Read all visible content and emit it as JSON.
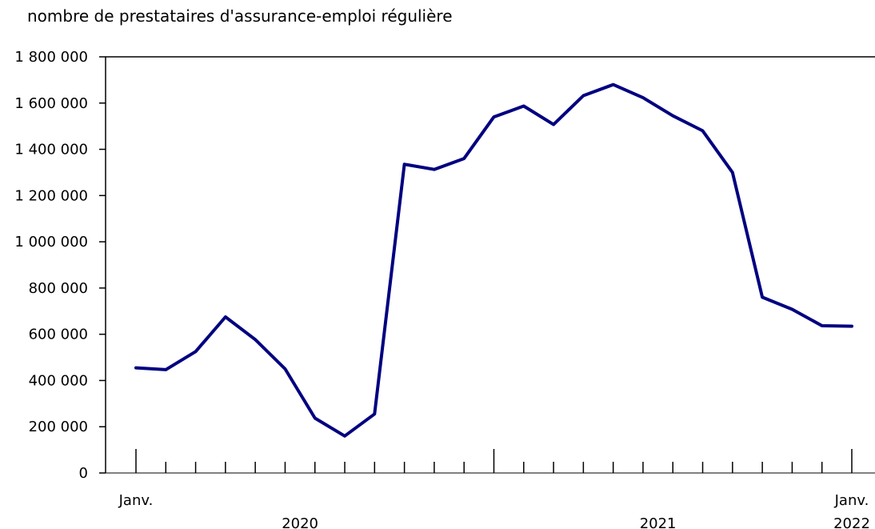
{
  "chart_data": {
    "type": "line",
    "title": "",
    "ylabel": "nombre de prestataires d'assurance-emploi régulière",
    "xlabel": "",
    "ylim": [
      0,
      1800000
    ],
    "y_ticks": [
      "0",
      "200 000",
      "400 000",
      "600 000",
      "800 000",
      "1 000 000",
      "1 200 000",
      "1 400 000",
      "1 600 000",
      "1 800 000"
    ],
    "x_tick_labels": [
      {
        "month_index": 0,
        "label": "Janv."
      },
      {
        "month_index": 24,
        "label": "Janv."
      }
    ],
    "x_group_labels": [
      {
        "label": "2020",
        "center_month": 5.5
      },
      {
        "label": "2021",
        "center_month": 17.5
      },
      {
        "label": "2022",
        "center_month": 24
      }
    ],
    "series": [
      {
        "color": "#000080",
        "x": [
          "2020-01",
          "2020-02",
          "2020-03",
          "2020-04",
          "2020-05",
          "2020-06",
          "2020-07",
          "2020-08",
          "2020-09",
          "2020-10",
          "2020-11",
          "2020-12",
          "2021-01",
          "2021-02",
          "2021-03",
          "2021-04",
          "2021-05",
          "2021-06",
          "2021-07",
          "2021-08",
          "2021-09",
          "2021-10",
          "2021-11",
          "2021-12",
          "2022-01"
        ],
        "values": [
          455000,
          447000,
          525000,
          675000,
          577000,
          450000,
          237000,
          160000,
          255000,
          1335000,
          1313000,
          1360000,
          1540000,
          1587000,
          1507000,
          1632000,
          1680000,
          1623000,
          1545000,
          1480000,
          1300000,
          760000,
          708000,
          637000,
          635000
        ]
      }
    ],
    "grid": false,
    "legend": "none"
  }
}
